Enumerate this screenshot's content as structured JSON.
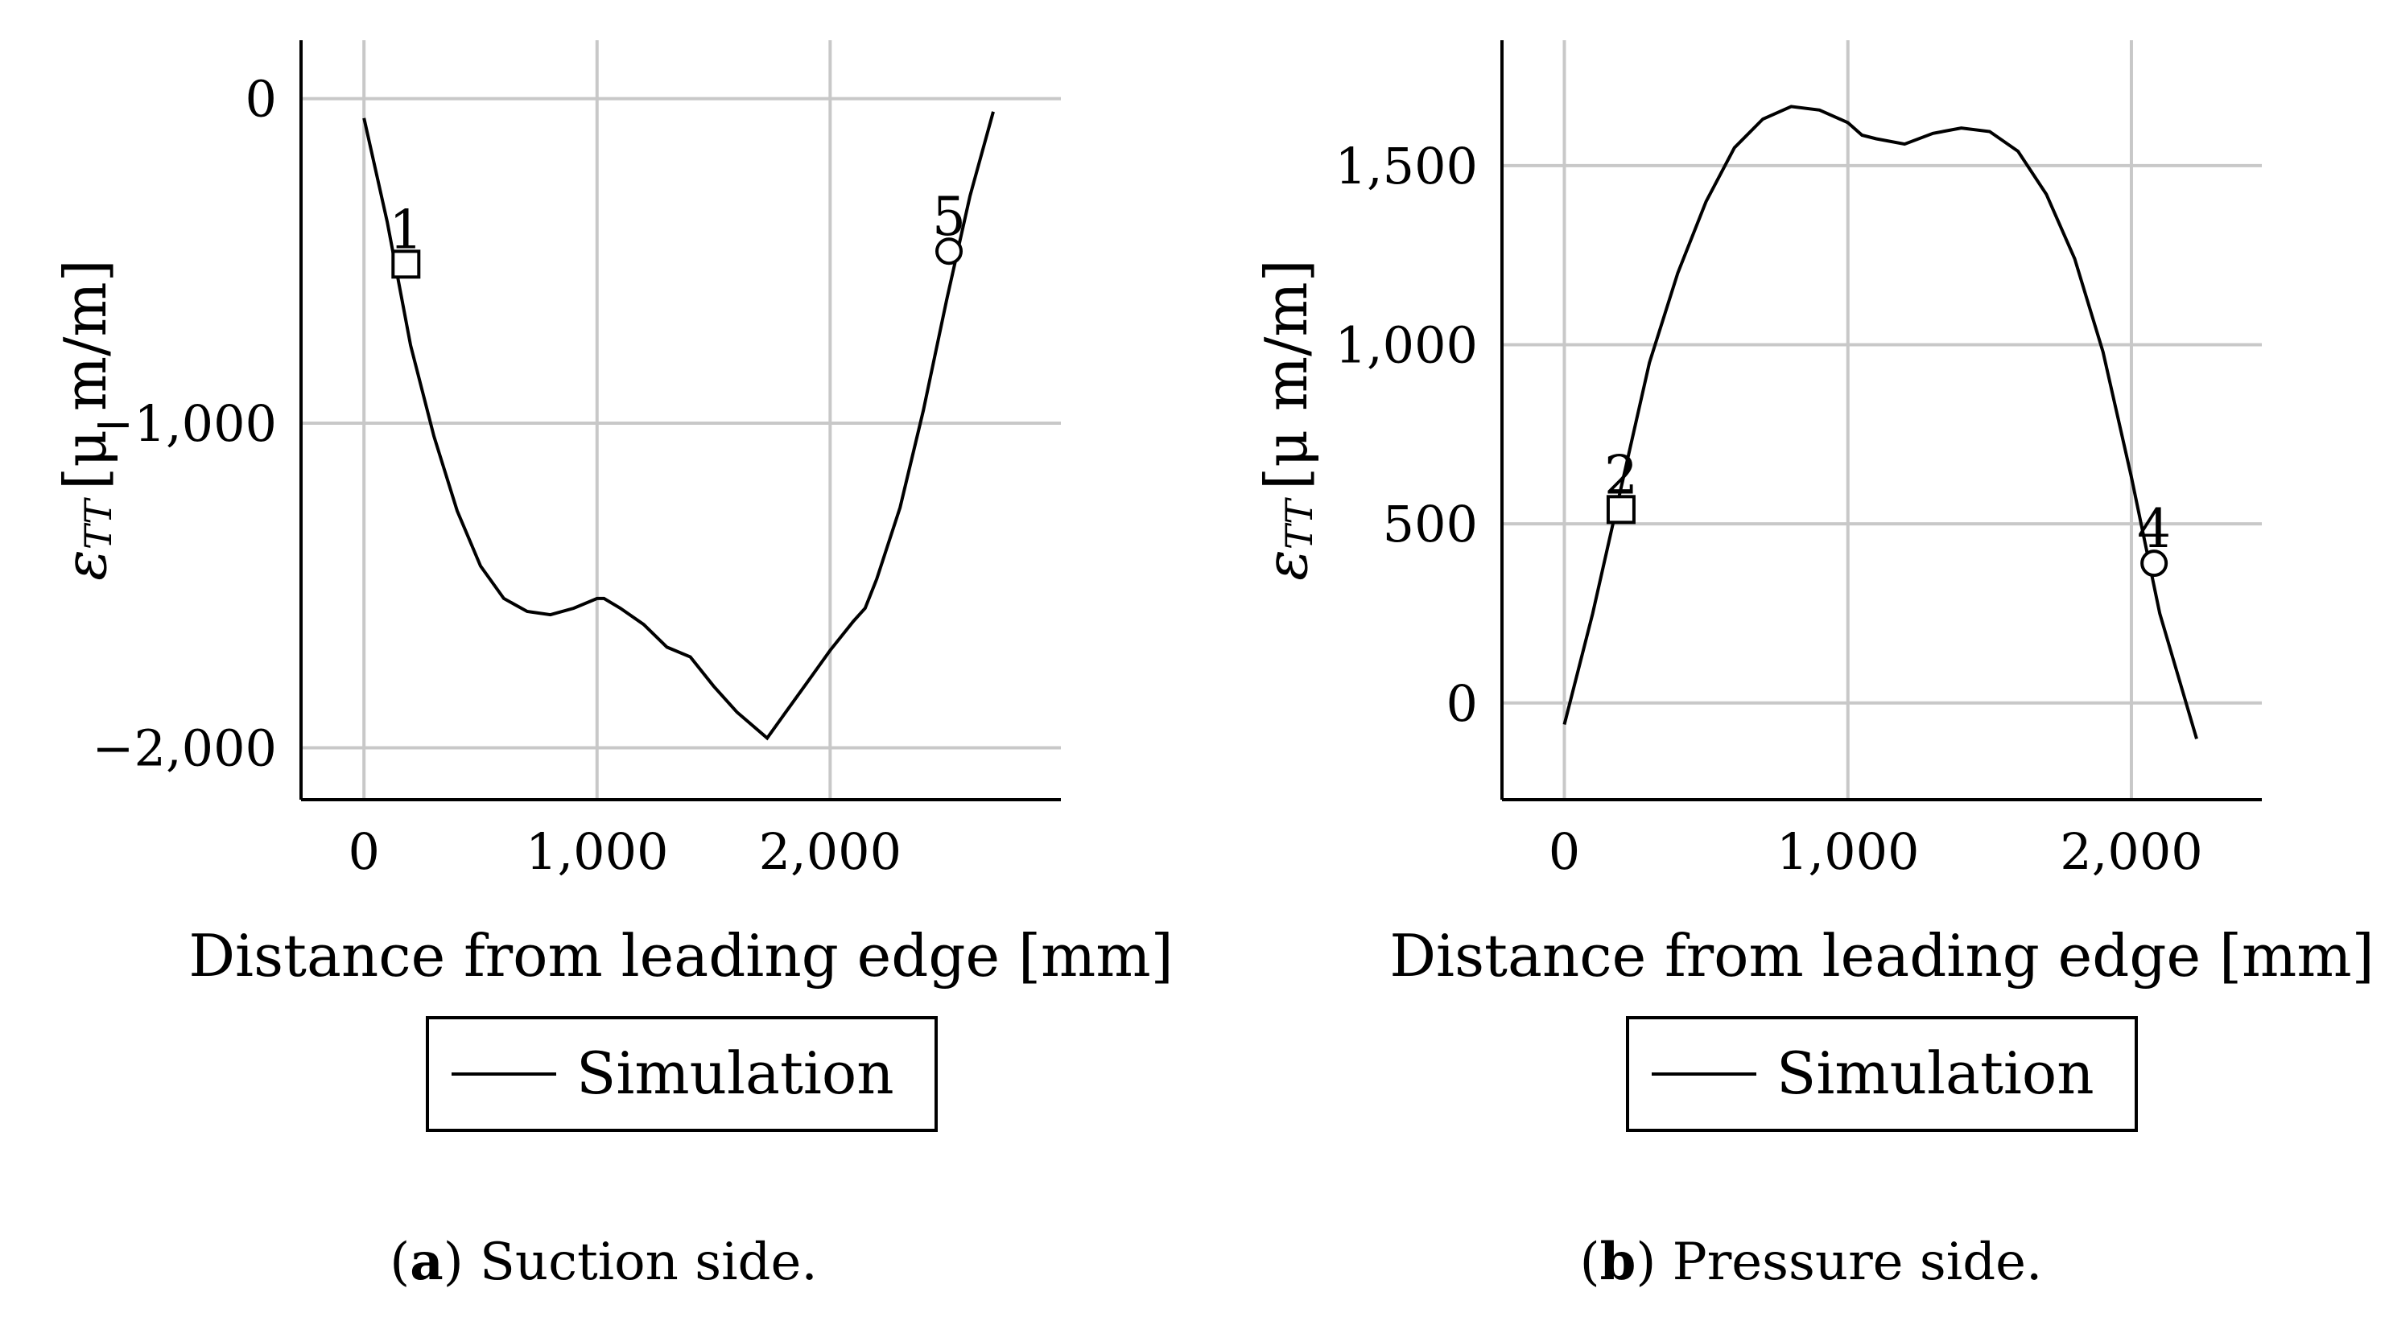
{
  "chart_data": [
    {
      "type": "line",
      "panel": "a",
      "caption_letter": "a",
      "caption_text": "Suction side.",
      "xlabel": "Distance from leading edge [mm]",
      "ylabel_symbol": "ε",
      "ylabel_subscript": "TT",
      "ylabel_units": "[μ m/m]",
      "xlim": [
        -270,
        2990
      ],
      "ylim": [
        -2160,
        180
      ],
      "xticks": [
        0,
        1000,
        2000
      ],
      "xtick_labels": [
        "0",
        "1,000",
        "2,000"
      ],
      "yticks": [
        0,
        -1000,
        -2000
      ],
      "ytick_labels": [
        "0",
        "−1,000",
        "−2,000"
      ],
      "series": [
        {
          "name": "Simulation",
          "x": [
            0,
            100,
            200,
            300,
            400,
            500,
            600,
            700,
            800,
            900,
            1000,
            1030,
            1100,
            1200,
            1300,
            1400,
            1500,
            1600,
            1730,
            1800,
            1900,
            2000,
            2100,
            2150,
            2200,
            2300,
            2400,
            2500,
            2600,
            2700
          ],
          "y": [
            -60,
            -380,
            -760,
            -1040,
            -1270,
            -1440,
            -1540,
            -1580,
            -1590,
            -1570,
            -1540,
            -1540,
            -1570,
            -1620,
            -1690,
            -1720,
            -1810,
            -1890,
            -1970,
            -1900,
            -1800,
            -1700,
            -1610,
            -1570,
            -1480,
            -1260,
            -960,
            -620,
            -300,
            -40
          ]
        }
      ],
      "markers": [
        {
          "label": "1",
          "shape": "square",
          "x": 180,
          "y": -510
        },
        {
          "label": "5",
          "shape": "circle",
          "x": 2510,
          "y": -470
        }
      ],
      "legend": {
        "entries": [
          "Simulation"
        ],
        "placement": "below"
      }
    },
    {
      "type": "line",
      "panel": "b",
      "caption_letter": "b",
      "caption_text": "Pressure side.",
      "xlabel": "Distance from leading edge [mm]",
      "ylabel_symbol": "ε",
      "ylabel_subscript": "TT",
      "ylabel_units": "[μ m/m]",
      "xlim": [
        -220,
        2460
      ],
      "ylim": [
        -270,
        1850
      ],
      "xticks": [
        0,
        1000,
        2000
      ],
      "xtick_labels": [
        "0",
        "1,000",
        "2,000"
      ],
      "yticks": [
        0,
        500,
        1000,
        1500
      ],
      "ytick_labels": [
        "0",
        "500",
        "1,000",
        "1,500"
      ],
      "series": [
        {
          "name": "Simulation",
          "x": [
            0,
            100,
            200,
            300,
            400,
            500,
            600,
            700,
            800,
            900,
            1000,
            1050,
            1100,
            1200,
            1300,
            1400,
            1500,
            1600,
            1700,
            1800,
            1900,
            2000,
            2100,
            2230
          ],
          "y": [
            -60,
            250,
            600,
            950,
            1200,
            1400,
            1550,
            1630,
            1665,
            1655,
            1620,
            1585,
            1575,
            1560,
            1590,
            1605,
            1595,
            1540,
            1420,
            1240,
            980,
            630,
            250,
            -100
          ]
        }
      ],
      "markers": [
        {
          "label": "2",
          "shape": "square",
          "x": 200,
          "y": 540
        },
        {
          "label": "4",
          "shape": "circle",
          "x": 2080,
          "y": 390
        }
      ],
      "legend": {
        "entries": [
          "Simulation"
        ],
        "placement": "below"
      }
    }
  ]
}
